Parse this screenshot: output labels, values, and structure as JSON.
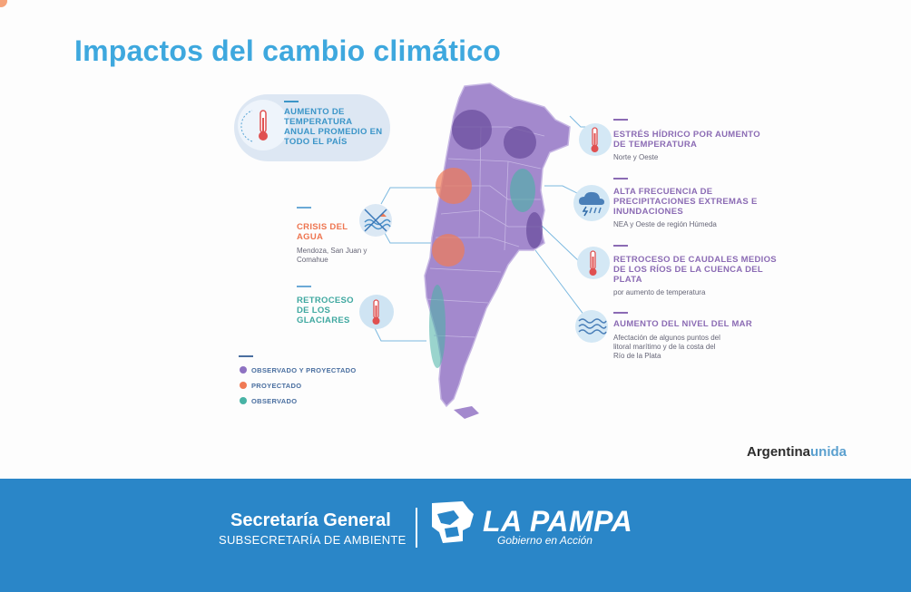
{
  "slide": {
    "title": "Impactos del cambio climático",
    "center_callout": "AUMENTO DE TEMPERATURA ANUAL PROMEDIO EN TODO EL PAÍS",
    "left_items": [
      {
        "title": "CRISIS DEL AGUA",
        "detail": "Mendoza, San Juan y Comahue",
        "icon": "water-crossed-icon"
      },
      {
        "title": "RETROCESO DE LOS GLACIARES",
        "detail": "",
        "icon": "thermometer-icon"
      }
    ],
    "right_items": [
      {
        "title": "ESTRÉS HÍDRICO POR AUMENTO DE TEMPERATURA",
        "detail": "Norte y Oeste",
        "icon": "thermometer-icon"
      },
      {
        "title": "ALTA FRECUENCIA DE PRECIPITACIONES EXTREMAS E INUNDACIONES",
        "detail": "NEA y Oeste de región Húmeda",
        "icon": "storm-cloud-icon"
      },
      {
        "title": "RETROCESO DE CAUDALES MEDIOS DE LOS RÍOS DE LA CUENCA DEL PLATA",
        "detail": "por aumento de temperatura",
        "icon": "thermometer-icon"
      },
      {
        "title": "AUMENTO DEL NIVEL DEL MAR",
        "detail": "Afectación de algunos puntos del litoral marítimo y de la costa del Río de la Plata",
        "icon": "waves-icon"
      }
    ],
    "legend": [
      {
        "label": "OBSERVADO Y PROYECTADO",
        "color": "#8e72c2"
      },
      {
        "label": "PROYECTADO",
        "color": "#f07a55"
      },
      {
        "label": "OBSERVADO",
        "color": "#48b3a5"
      }
    ],
    "brand_main": "Argentina",
    "brand_accent": "unida"
  },
  "footer": {
    "title": "Secretaría General",
    "subtitle": "SUBSECRETARÍA DE AMBIENTE",
    "logo_title": "LA PAMPA",
    "logo_subtitle": "Gobierno en Acción"
  },
  "colors": {
    "title": "#3ea8de",
    "map": "#a389cd",
    "footer": "#2a86c8"
  }
}
